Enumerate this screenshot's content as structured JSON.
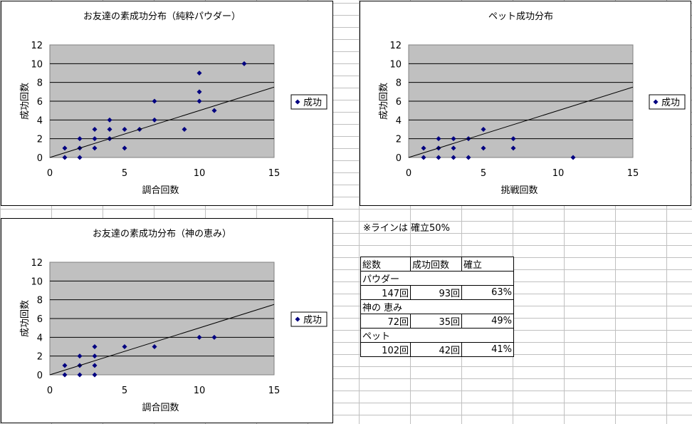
{
  "chart_data": [
    {
      "type": "scatter",
      "title": "お友達の素成功分布（純粋パウダー）",
      "xlabel": "調合回数",
      "ylabel": "成功回数",
      "legend": "成功",
      "legend_position": "right",
      "xlim": [
        0,
        15
      ],
      "ylim": [
        0,
        12
      ],
      "x_ticks": [
        "0",
        "5",
        "10",
        "15"
      ],
      "y_ticks": [
        "0",
        "2",
        "4",
        "6",
        "8",
        "10",
        "12"
      ],
      "grid": true,
      "trendline": [
        [
          0,
          0
        ],
        [
          15,
          7.5
        ]
      ],
      "points": [
        [
          1,
          1
        ],
        [
          1,
          0
        ],
        [
          2,
          2
        ],
        [
          2,
          1
        ],
        [
          2,
          0
        ],
        [
          3,
          3
        ],
        [
          3,
          2
        ],
        [
          3,
          1
        ],
        [
          4,
          4
        ],
        [
          4,
          3
        ],
        [
          4,
          2
        ],
        [
          5,
          3
        ],
        [
          5,
          1
        ],
        [
          6,
          3
        ],
        [
          7,
          6
        ],
        [
          7,
          4
        ],
        [
          9,
          3
        ],
        [
          10,
          9
        ],
        [
          10,
          7
        ],
        [
          10,
          6
        ],
        [
          11,
          5
        ],
        [
          13,
          10
        ]
      ]
    },
    {
      "type": "scatter",
      "title": "ペット成功分布",
      "xlabel": "挑戦回数",
      "ylabel": "成功回数",
      "legend": "成功",
      "legend_position": "right",
      "xlim": [
        0,
        15
      ],
      "ylim": [
        0,
        12
      ],
      "x_ticks": [
        "0",
        "5",
        "10",
        "15"
      ],
      "y_ticks": [
        "0",
        "2",
        "4",
        "6",
        "8",
        "10",
        "12"
      ],
      "grid": true,
      "trendline": [
        [
          0,
          0
        ],
        [
          15,
          7.5
        ]
      ],
      "points": [
        [
          1,
          1
        ],
        [
          1,
          0
        ],
        [
          2,
          2
        ],
        [
          2,
          1
        ],
        [
          2,
          0
        ],
        [
          3,
          2
        ],
        [
          3,
          1
        ],
        [
          3,
          0
        ],
        [
          4,
          2
        ],
        [
          4,
          0
        ],
        [
          5,
          3
        ],
        [
          5,
          1
        ],
        [
          7,
          2
        ],
        [
          7,
          1
        ],
        [
          11,
          0
        ]
      ]
    },
    {
      "type": "scatter",
      "title": "お友達の素成功分布（神の恵み）",
      "xlabel": "調合回数",
      "ylabel": "成功回数",
      "legend": "成功",
      "legend_position": "right",
      "xlim": [
        0,
        15
      ],
      "ylim": [
        0,
        12
      ],
      "x_ticks": [
        "0",
        "5",
        "10",
        "15"
      ],
      "y_ticks": [
        "0",
        "2",
        "4",
        "6",
        "8",
        "10",
        "12"
      ],
      "grid": true,
      "trendline": [
        [
          0,
          0
        ],
        [
          15,
          7.5
        ]
      ],
      "points": [
        [
          1,
          1
        ],
        [
          1,
          0
        ],
        [
          2,
          2
        ],
        [
          2,
          1
        ],
        [
          2,
          0
        ],
        [
          3,
          3
        ],
        [
          3,
          2
        ],
        [
          3,
          1
        ],
        [
          3,
          0
        ],
        [
          5,
          3
        ],
        [
          7,
          3
        ],
        [
          10,
          4
        ],
        [
          11,
          4
        ]
      ]
    }
  ],
  "note": "※ラインは 確立50%",
  "stats_table": {
    "headers": [
      "総数",
      "成功回数",
      "確立"
    ],
    "rows": [
      {
        "category": "パウダー",
        "total": "147回",
        "success": "93回",
        "rate": "63%"
      },
      {
        "category": "神の 恵み",
        "total": "72回",
        "success": "35回",
        "rate": "49%"
      },
      {
        "category": "ペット",
        "total": "102回",
        "success": "42回",
        "rate": "41%"
      }
    ]
  },
  "colors": {
    "plot_area": "#c0c0c0",
    "marker": "#000080",
    "gridline": "#000000",
    "sheet_grid": "#c0c0c0"
  }
}
